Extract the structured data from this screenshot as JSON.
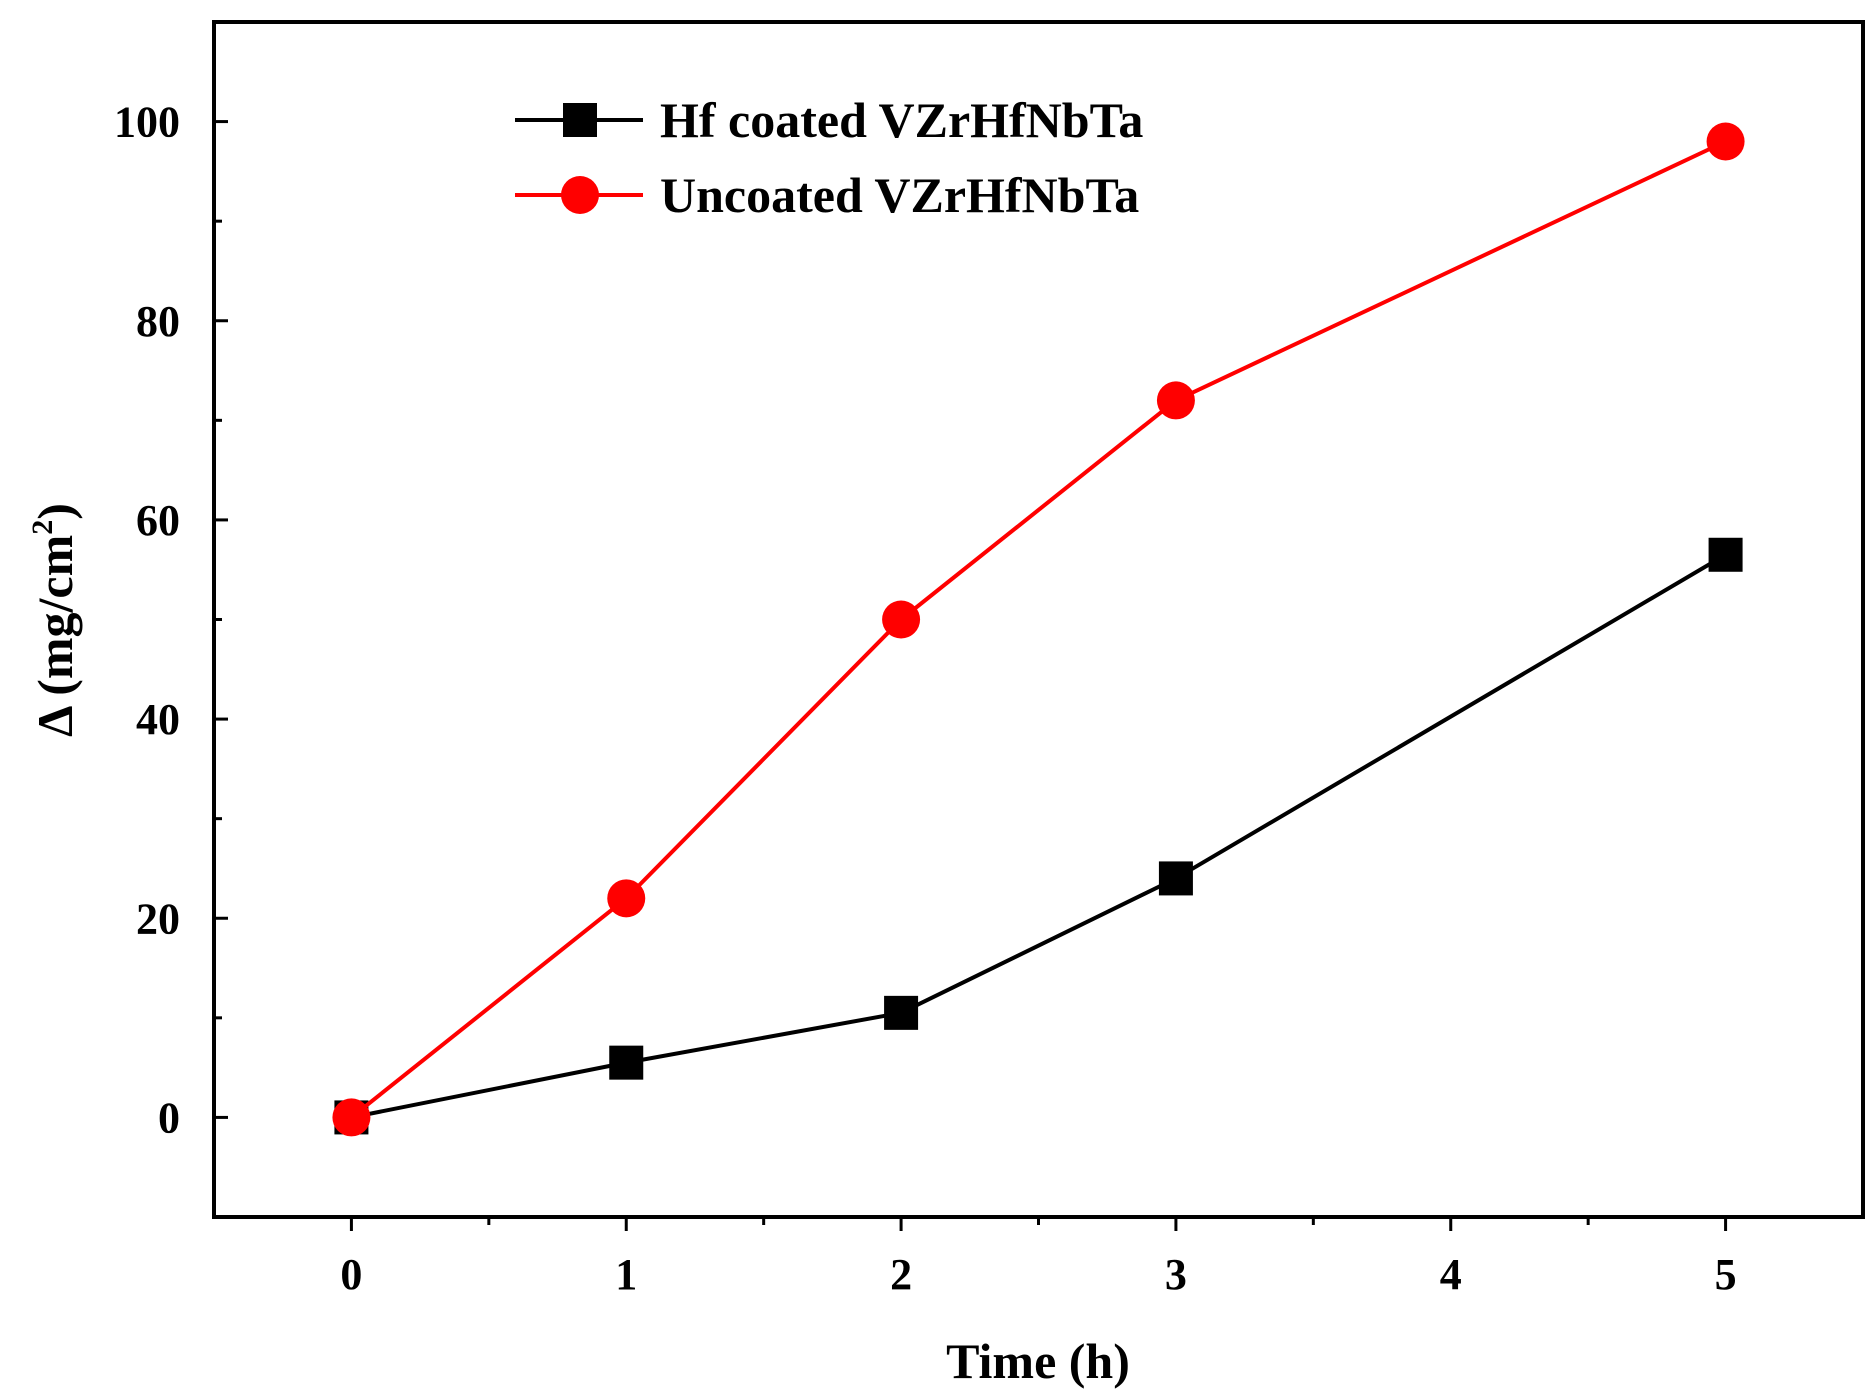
{
  "chart_data": {
    "type": "line",
    "title": "",
    "xlabel": "Time (h)",
    "ylabel": {
      "prefix": "Δ (mg/cm",
      "superscript": "2",
      "suffix": ")"
    },
    "xlim": [
      -0.5,
      5.5
    ],
    "ylim": [
      -10,
      110
    ],
    "xticks": [
      0,
      1,
      2,
      3,
      4,
      5
    ],
    "xtick_labels": [
      "0",
      "1",
      "2",
      "3",
      "4",
      "5"
    ],
    "yticks": [
      0,
      20,
      40,
      60,
      80,
      100
    ],
    "ytick_labels": [
      "0",
      "20",
      "40",
      "60",
      "80",
      "100"
    ],
    "grid": false,
    "legend_position": "top-left",
    "series": [
      {
        "name": "Hf coated VZrHfNbTa",
        "color": "#000000",
        "marker": "square",
        "x": [
          0,
          1,
          2,
          3,
          5
        ],
        "y": [
          0,
          5.5,
          10.5,
          24,
          56.5
        ]
      },
      {
        "name": "Uncoated VZrHfNbTa",
        "color": "#ff0000",
        "marker": "circle",
        "x": [
          0,
          1,
          2,
          3,
          5
        ],
        "y": [
          0,
          22,
          50,
          72,
          98
        ]
      }
    ]
  }
}
